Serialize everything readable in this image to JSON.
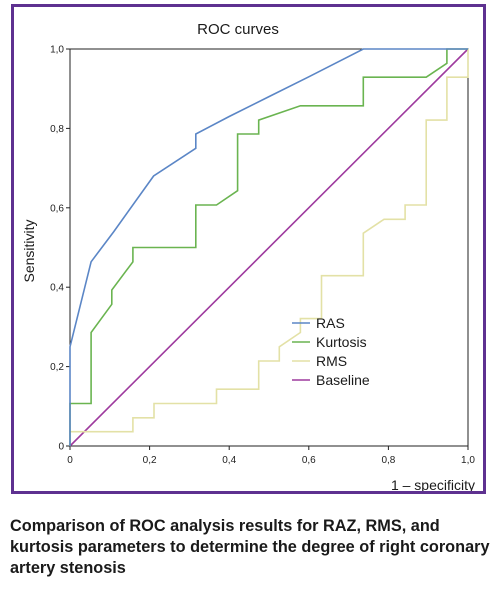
{
  "chart_data": {
    "type": "line",
    "title": "ROC curves",
    "xlabel": "1 – specificity",
    "ylabel": "Sensitivity",
    "xlim": [
      0,
      1
    ],
    "ylim": [
      0,
      1
    ],
    "xticks": [
      "0",
      "0,2",
      "0,4",
      "0,6",
      "0,8",
      "1,0"
    ],
    "yticks": [
      "0",
      "0,2",
      "0,4",
      "0,6",
      "0,8",
      "1,0"
    ],
    "legend_position": "bottom-right",
    "grid": false,
    "series": [
      {
        "name": "RAS",
        "color": "#5b86c6",
        "x": [
          0,
          0,
          0.053,
          0.11,
          0.21,
          0.316,
          0.316,
          0.4,
          0.5,
          0.6,
          0.737,
          1.0
        ],
        "y": [
          0,
          0.25,
          0.464,
          0.54,
          0.68,
          0.75,
          0.786,
          0.83,
          0.88,
          0.93,
          1.0,
          1.0
        ]
      },
      {
        "name": "Kurtosis",
        "color": "#6ab450",
        "x": [
          0,
          0,
          0.053,
          0.053,
          0.105,
          0.105,
          0.158,
          0.158,
          0.316,
          0.316,
          0.368,
          0.421,
          0.421,
          0.474,
          0.474,
          0.579,
          0.737,
          0.737,
          0.895,
          0.947,
          0.947,
          1.0
        ],
        "y": [
          0,
          0.107,
          0.107,
          0.286,
          0.357,
          0.393,
          0.464,
          0.5,
          0.5,
          0.607,
          0.607,
          0.643,
          0.786,
          0.786,
          0.821,
          0.857,
          0.857,
          0.929,
          0.929,
          0.964,
          1.0,
          1.0
        ]
      },
      {
        "name": "RMS",
        "color": "#e3e1a6",
        "x": [
          0,
          0.158,
          0.158,
          0.211,
          0.211,
          0.368,
          0.368,
          0.474,
          0.474,
          0.526,
          0.526,
          0.579,
          0.579,
          0.632,
          0.632,
          0.737,
          0.737,
          0.789,
          0.842,
          0.842,
          0.895,
          0.895,
          0.947,
          0.947,
          1.0,
          1.0
        ],
        "y": [
          0.036,
          0.036,
          0.071,
          0.071,
          0.107,
          0.107,
          0.143,
          0.143,
          0.214,
          0.214,
          0.25,
          0.286,
          0.321,
          0.321,
          0.429,
          0.429,
          0.536,
          0.571,
          0.571,
          0.607,
          0.607,
          0.821,
          0.821,
          0.929,
          0.929,
          1.0
        ]
      },
      {
        "name": "Baseline",
        "color": "#9e3a9e",
        "x": [
          0,
          1
        ],
        "y": [
          0,
          1
        ]
      }
    ]
  },
  "caption": "Comparison of ROC analysis results for RAZ, RMS, and kurtosis parameters to determine the degree of right coronary artery stenosis"
}
